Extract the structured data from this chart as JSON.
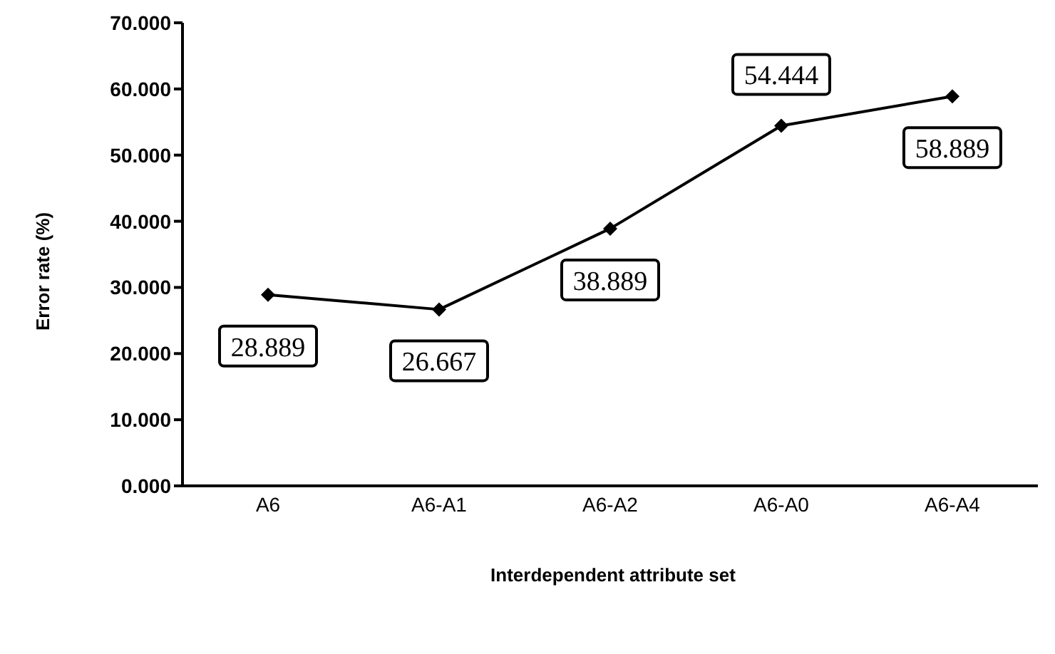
{
  "chart_data": {
    "type": "line",
    "xlabel": "Interdependent attribute set",
    "ylabel": "Error rate (%)",
    "categories": [
      "A6",
      "A6-A1",
      "A6-A2",
      "A6-A0",
      "A6-A4"
    ],
    "series": [
      {
        "color": "#000000",
        "values": [
          28.889,
          26.667,
          38.889,
          54.444,
          58.889
        ]
      }
    ],
    "ylim": [
      0,
      70
    ],
    "yticks": [
      {
        "value": 0,
        "label": "0.000"
      },
      {
        "value": 10,
        "label": "10.000"
      },
      {
        "value": 20,
        "label": "20.000"
      },
      {
        "value": 30,
        "label": "30.000"
      },
      {
        "value": 40,
        "label": "40.000"
      },
      {
        "value": 50,
        "label": "50.000"
      },
      {
        "value": 60,
        "label": "60.000"
      },
      {
        "value": 70,
        "label": "70.000"
      }
    ],
    "marker": "diamond",
    "line_style": "solid",
    "data_labels": true,
    "grid": false,
    "legend": false
  }
}
